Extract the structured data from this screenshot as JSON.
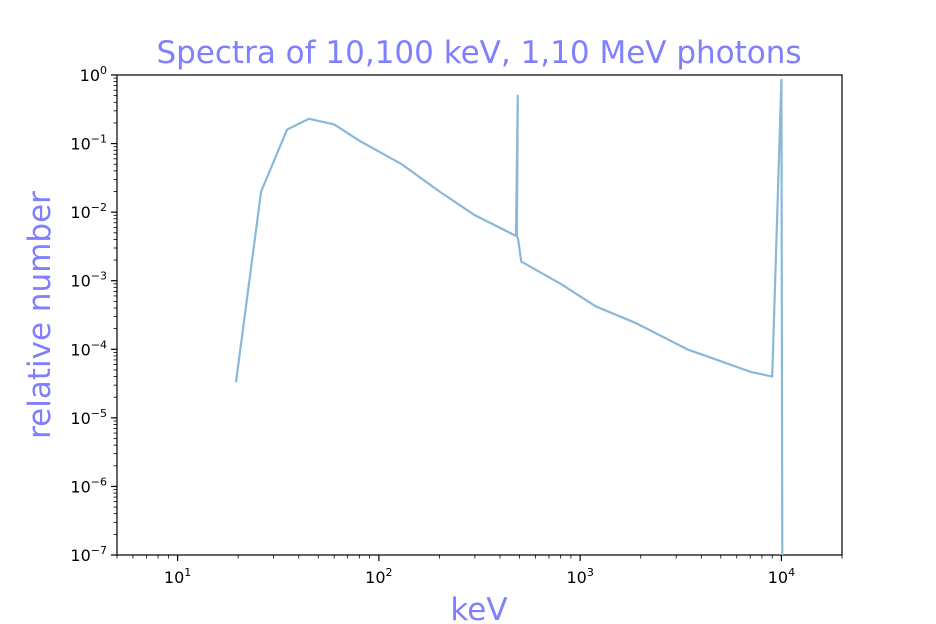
{
  "chart_data": {
    "type": "line",
    "title": "Spectra of 10,100 keV, 1,10 MeV photons",
    "xlabel": "keV",
    "ylabel": "relative number",
    "xscale": "log",
    "yscale": "log",
    "xlim": [
      5,
      20000
    ],
    "ylim": [
      1e-07,
      1
    ],
    "grid": false,
    "text_color": "#7f7fff",
    "line_color": "#8ab8d8",
    "x_ticks": [
      {
        "value": 10,
        "base": "10",
        "exp": "1"
      },
      {
        "value": 100,
        "base": "10",
        "exp": "2"
      },
      {
        "value": 1000,
        "base": "10",
        "exp": "3"
      },
      {
        "value": 10000,
        "base": "10",
        "exp": "4"
      }
    ],
    "y_ticks": [
      {
        "value": 1e-07,
        "base": "10",
        "exp": "−7"
      },
      {
        "value": 1e-06,
        "base": "10",
        "exp": "−6"
      },
      {
        "value": 1e-05,
        "base": "10",
        "exp": "−5"
      },
      {
        "value": 0.0001,
        "base": "10",
        "exp": "−4"
      },
      {
        "value": 0.001,
        "base": "10",
        "exp": "−3"
      },
      {
        "value": 0.01,
        "base": "10",
        "exp": "−2"
      },
      {
        "value": 0.1,
        "base": "10",
        "exp": "−1"
      },
      {
        "value": 1,
        "base": "10",
        "exp": "0"
      }
    ],
    "series": [
      {
        "x": [
          19.5,
          26,
          35,
          45,
          60,
          80,
          130,
          200,
          300,
          480,
          490,
          485,
          492,
          510,
          800,
          1200,
          1900,
          3400,
          4800,
          7000,
          9000,
          10000,
          10100
        ],
        "y": [
          3.3e-05,
          0.02,
          0.16,
          0.23,
          0.19,
          0.11,
          0.05,
          0.02,
          0.009,
          0.0045,
          0.5,
          0.0045,
          0.004,
          0.0019,
          0.0009,
          0.00042,
          0.00024,
          0.0001,
          7e-05,
          4.7e-05,
          4e-05,
          0.85,
          1e-07
        ]
      }
    ]
  }
}
